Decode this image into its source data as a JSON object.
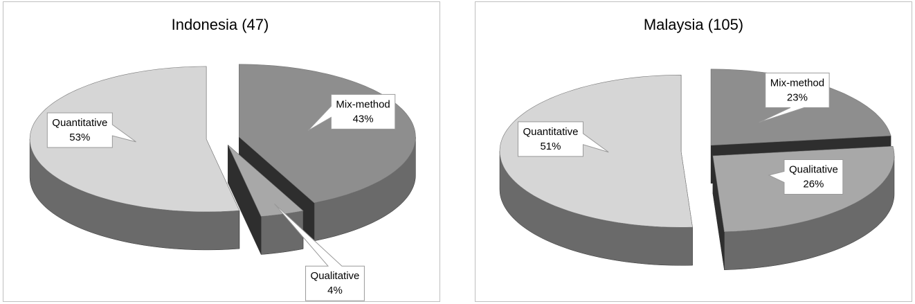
{
  "chart_data": [
    {
      "type": "pie",
      "title": "Indonesia  (47)",
      "categories": [
        "Mix-method",
        "Qualitative",
        "Quantitative"
      ],
      "values": [
        43,
        4,
        53
      ],
      "value_labels": [
        "43%",
        "4%",
        "53%"
      ],
      "colors": [
        "#8e8e8e",
        "#a8a8a8",
        "#d6d6d6"
      ]
    },
    {
      "type": "pie",
      "title": "Malaysia  (105)",
      "categories": [
        "Mix-method",
        "Qualitative",
        "Quantitative"
      ],
      "values": [
        23,
        26,
        51
      ],
      "value_labels": [
        "23%",
        "26%",
        "51%"
      ],
      "colors": [
        "#8e8e8e",
        "#a8a8a8",
        "#d6d6d6"
      ]
    }
  ]
}
